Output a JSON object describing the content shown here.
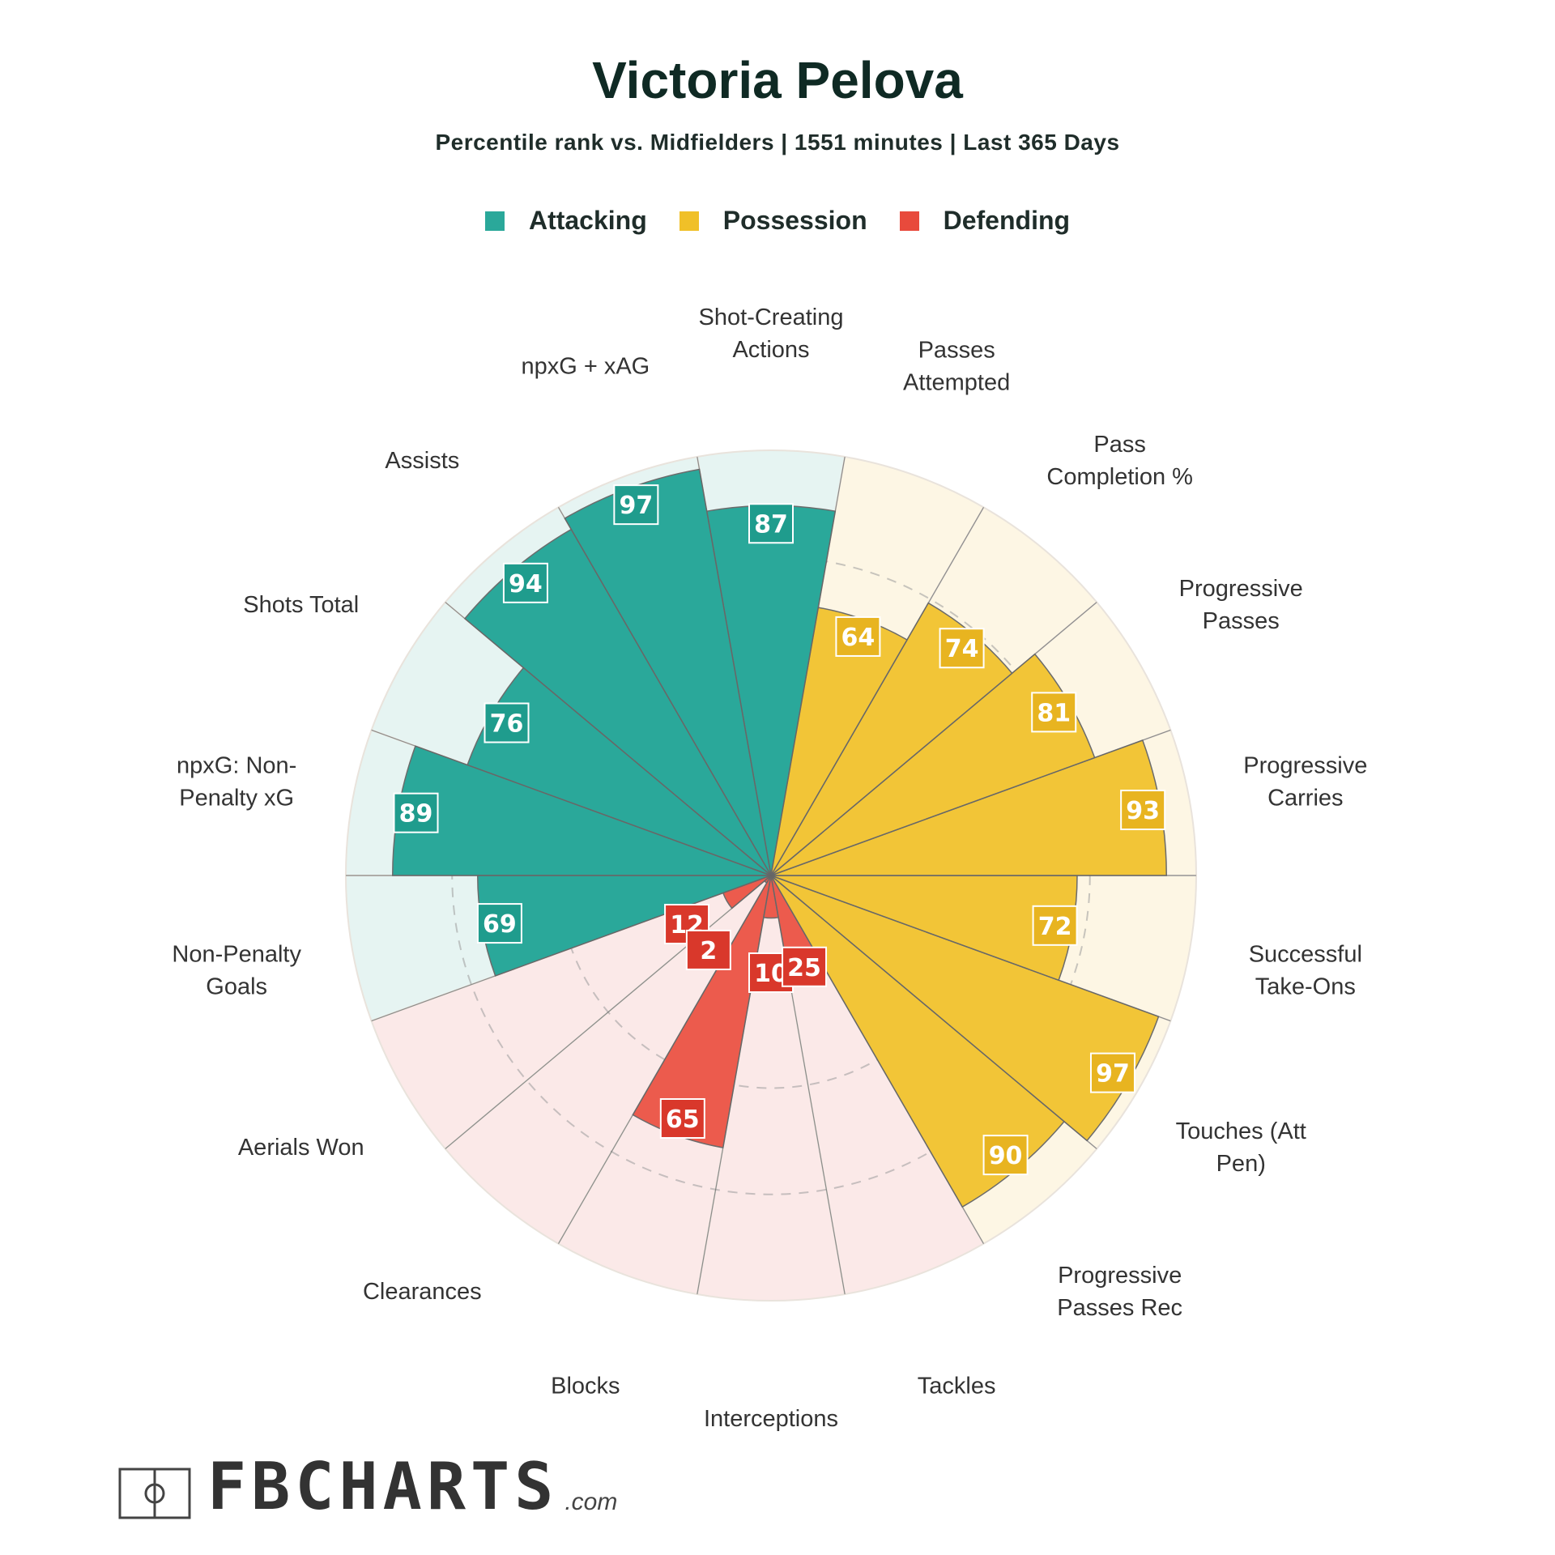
{
  "title": "Victoria Pelova",
  "subtitle": "Percentile rank vs. Midfielders | 1551 minutes | Last 365 Days",
  "legend": [
    {
      "label": "Attacking",
      "color": "#2aa89a"
    },
    {
      "label": "Possession",
      "color": "#f0c028"
    },
    {
      "label": "Defending",
      "color": "#e84a3c"
    }
  ],
  "logo": {
    "text": "FBCHARTS",
    "domain": ".com",
    "icon": "football-pitch-icon"
  },
  "chart_data": {
    "type": "polar-bar",
    "rlim": [
      0,
      100
    ],
    "grid": "dashed rings",
    "legend_placement": "top-center",
    "series": [
      {
        "name": "Attacking",
        "color": "#2aa89a",
        "bg": "#e6f4f2",
        "label_bg": "#1f9c8d",
        "categories": [
          "Shot-Creating Actions",
          "npxG + xAG",
          "Assists",
          "Shots Total",
          "npxG: Non-Penalty xG",
          "Non-Penalty Goals"
        ],
        "values": [
          87,
          97,
          94,
          76,
          89,
          69
        ]
      },
      {
        "name": "Defending",
        "color": "#ec5b4d",
        "bg": "#fbe9e8",
        "label_bg": "#d9382b",
        "categories": [
          "Aerials Won",
          "Clearances",
          "Blocks",
          "Interceptions",
          "Tackles"
        ],
        "values": [
          12,
          2,
          65,
          10,
          25
        ]
      },
      {
        "name": "Possession",
        "color": "#f2c537",
        "bg": "#fdf6e4",
        "label_bg": "#e8b420",
        "categories": [
          "Progressive Passes Rec",
          "Touches (Att Pen)",
          "Successful Take-Ons",
          "Progressive Carries",
          "Progressive Passes",
          "Pass Completion %",
          "Passes Attempted"
        ],
        "values": [
          90,
          97,
          72,
          93,
          81,
          74,
          64
        ]
      }
    ],
    "category_labels": [
      [
        "Shot-Creating",
        "Actions"
      ],
      [
        "npxG + xAG"
      ],
      [
        "Assists"
      ],
      [
        "Shots Total"
      ],
      [
        "npxG: Non-",
        "Penalty xG"
      ],
      [
        "Non-Penalty",
        "Goals"
      ],
      [
        "Aerials Won"
      ],
      [
        "Clearances"
      ],
      [
        "Blocks"
      ],
      [
        "Interceptions"
      ],
      [
        "Tackles"
      ],
      [
        "Progressive",
        "Passes Rec"
      ],
      [
        "Touches (Att",
        "Pen)"
      ],
      [
        "Successful",
        "Take-Ons"
      ],
      [
        "Progressive",
        "Carries"
      ],
      [
        "Progressive",
        "Passes"
      ],
      [
        "Pass",
        "Completion %"
      ],
      [
        "Passes",
        "Attempted"
      ]
    ]
  }
}
